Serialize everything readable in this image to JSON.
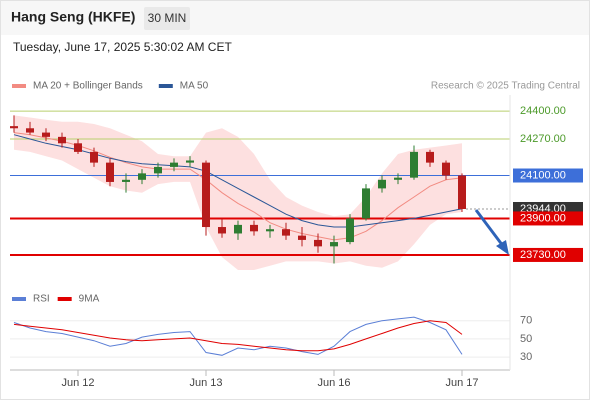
{
  "header": {
    "title": "Hang Seng (HKFE)",
    "interval": "30 MIN",
    "timestamp": "Tuesday, June 17, 2025 5:30:02 AM CET"
  },
  "chart_data": [
    {
      "type": "candlestick",
      "credit": "Research © 2025 Trading Central",
      "xlim": [
        -0.25,
        31
      ],
      "ylim": [
        23590,
        24475
      ],
      "up_color": "#2e7d32",
      "down_color": "#b71c1c",
      "open": [
        24330,
        24320,
        24300,
        24280,
        24250,
        24210,
        24160,
        24070,
        24080,
        24110,
        24140,
        24160,
        24160,
        23860,
        23830,
        23870,
        23840,
        23850,
        23820,
        23800,
        23770,
        23790,
        23900,
        24040,
        24080,
        24090,
        24210,
        24160,
        24100
      ],
      "high": [
        24380,
        24350,
        24320,
        24300,
        24270,
        24230,
        24180,
        24110,
        24130,
        24160,
        24180,
        24190,
        24170,
        23900,
        23890,
        23890,
        23870,
        23880,
        23860,
        23830,
        23820,
        23920,
        24060,
        24100,
        24110,
        24240,
        24220,
        24170,
        24110
      ],
      "low": [
        24300,
        24290,
        24260,
        24230,
        24200,
        24140,
        24050,
        24020,
        24060,
        24090,
        24120,
        24140,
        23820,
        23810,
        23800,
        23820,
        23810,
        23800,
        23770,
        23740,
        23690,
        23780,
        23890,
        24020,
        24060,
        24080,
        24140,
        24080,
        23930
      ],
      "close": [
        24320,
        24300,
        24280,
        24250,
        24210,
        24160,
        24070,
        24080,
        24110,
        24140,
        24160,
        24170,
        23860,
        23830,
        23870,
        23840,
        23850,
        23820,
        23800,
        23770,
        23790,
        23900,
        24040,
        24080,
        24090,
        24210,
        24160,
        24100,
        23944
      ],
      "series": [
        {
          "name": "MA 20 + Bollinger Bands",
          "color": "#f28b82",
          "band_color": "#fde0e0",
          "values": [
            24300,
            24290,
            24275,
            24260,
            24240,
            24215,
            24185,
            24160,
            24140,
            24130,
            24130,
            24130,
            24080,
            24020,
            23970,
            23930,
            23880,
            23850,
            23830,
            23815,
            23800,
            23810,
            23840,
            23890,
            23950,
            24000,
            24050,
            24080,
            24090
          ],
          "upper": [
            24380,
            24370,
            24360,
            24350,
            24350,
            24340,
            24320,
            24290,
            24260,
            24200,
            24190,
            24190,
            24300,
            24320,
            24280,
            24200,
            24080,
            24000,
            23960,
            23930,
            23910,
            23920,
            24000,
            24110,
            24200,
            24220,
            24230,
            24240,
            24250
          ],
          "lower": [
            24220,
            24210,
            24190,
            24170,
            24130,
            24090,
            24050,
            24030,
            24020,
            24060,
            24070,
            24070,
            23860,
            23720,
            23660,
            23660,
            23680,
            23700,
            23700,
            23700,
            23690,
            23700,
            23680,
            23670,
            23700,
            23780,
            23870,
            23920,
            23930
          ]
        },
        {
          "name": "MA 50",
          "color": "#2b5797",
          "values": [
            24290,
            24270,
            24250,
            24235,
            24220,
            24200,
            24180,
            24165,
            24155,
            24150,
            24145,
            24140,
            24120,
            24080,
            24040,
            24000,
            23960,
            23920,
            23890,
            23870,
            23860,
            23860,
            23870,
            23880,
            23890,
            23900,
            23915,
            23930,
            23945
          ]
        }
      ],
      "levels": [
        {
          "value": 24400,
          "label": "24400.00",
          "line_color": "#b9cf6e",
          "text_color": "#4c9a2a",
          "box": false
        },
        {
          "value": 24270,
          "label": "24270.00",
          "line_color": "#b9cf6e",
          "text_color": "#4c9a2a",
          "box": false
        },
        {
          "value": 24100,
          "label": "24100.00",
          "line_color": "#3d6fd9",
          "text_color": "#ffffff",
          "box": true
        },
        {
          "value": 23944,
          "label": "23944.00",
          "line_color": "#9a9a9a",
          "text_color": "#ffffff",
          "box": true,
          "dotted": true,
          "box_color": "#333333"
        },
        {
          "value": 23900,
          "label": "23900.00",
          "line_color": "#e00000",
          "text_color": "#ffffff",
          "box": true
        },
        {
          "value": 23730,
          "label": "23730.00",
          "line_color": "#e00000",
          "text_color": "#ffffff",
          "box": true
        }
      ]
    },
    {
      "type": "line",
      "xlim": [
        -0.25,
        31
      ],
      "ylim": [
        18,
        84
      ],
      "yticks": [
        30,
        50,
        70
      ],
      "xticks": [
        {
          "value": 4,
          "label": "Jun 12"
        },
        {
          "value": 12,
          "label": "Jun 13"
        },
        {
          "value": 20,
          "label": "Jun 16"
        },
        {
          "value": 28,
          "label": "Jun 17"
        }
      ],
      "series": [
        {
          "name": "RSI",
          "color": "#5b7fd6",
          "values": [
            68,
            62,
            58,
            56,
            52,
            48,
            42,
            45,
            52,
            55,
            57,
            58,
            35,
            32,
            40,
            38,
            42,
            40,
            36,
            33,
            42,
            58,
            66,
            70,
            72,
            74,
            68,
            60,
            33
          ]
        },
        {
          "name": "9MA",
          "color": "#e00000",
          "values": [
            66,
            64,
            62,
            60,
            57,
            54,
            51,
            49,
            48,
            49,
            50,
            51,
            48,
            45,
            44,
            42,
            40,
            38,
            37,
            37,
            39,
            44,
            50,
            56,
            62,
            67,
            70,
            68,
            55
          ]
        }
      ]
    }
  ]
}
